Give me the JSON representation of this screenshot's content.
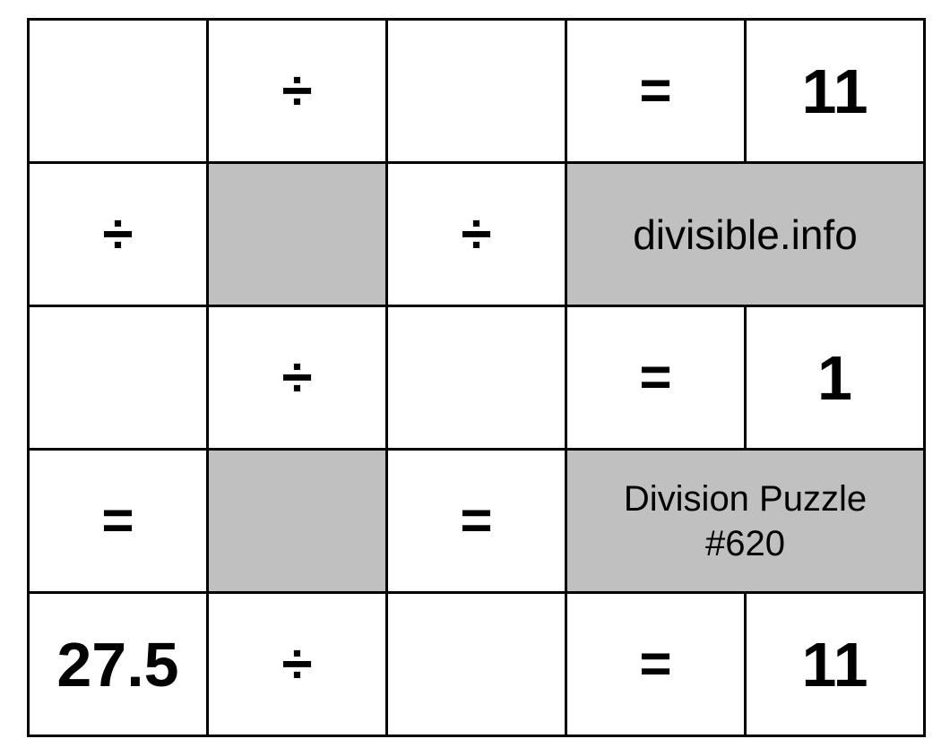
{
  "puzzle": {
    "brand": "divisible.info",
    "title_line1": "Division Puzzle",
    "title_line2": "#620",
    "colors": {
      "blocked_cell": "#c0c0c0",
      "grid_line": "#000000"
    },
    "rows": [
      [
        "",
        "÷",
        "",
        "=",
        "11"
      ],
      [
        "÷",
        "",
        "÷"
      ],
      [
        "",
        "÷",
        "",
        "=",
        "1"
      ],
      [
        "=",
        "",
        "="
      ],
      [
        "27.5",
        "÷",
        "",
        "=",
        "11"
      ]
    ]
  }
}
